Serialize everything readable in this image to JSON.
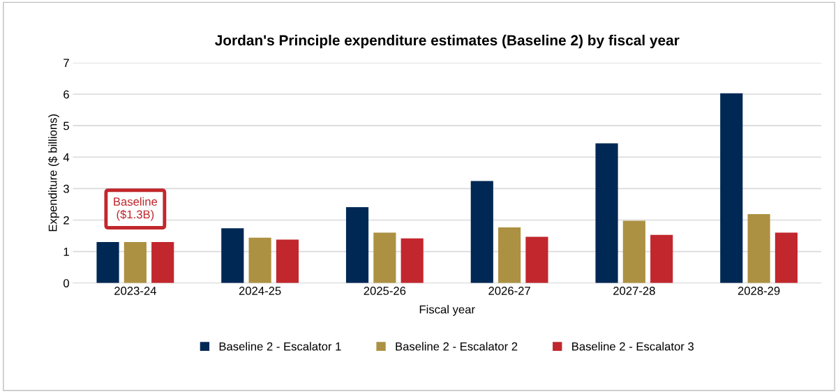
{
  "chart_data": {
    "type": "bar",
    "title": "Jordan's Principle expenditure estimates (Baseline 2) by fiscal year",
    "xlabel": "Fiscal year",
    "ylabel": "Expenditure ($ billions)",
    "categories": [
      "2023-24",
      "2024-25",
      "2025-26",
      "2026-27",
      "2027-28",
      "2028-29"
    ],
    "series": [
      {
        "name": "Baseline 2 - Escalator 1",
        "color": "#002855",
        "values": [
          1.3,
          1.74,
          2.41,
          3.24,
          4.44,
          6.03
        ]
      },
      {
        "name": "Baseline 2 - Escalator 2",
        "color": "#ad9142",
        "values": [
          1.3,
          1.44,
          1.6,
          1.77,
          1.98,
          2.19
        ]
      },
      {
        "name": "Baseline 2 - Escalator 3",
        "color": "#c1272d",
        "values": [
          1.3,
          1.38,
          1.42,
          1.47,
          1.53,
          1.6
        ]
      }
    ],
    "ylim": [
      0,
      7
    ],
    "yticks": [
      0,
      1,
      2,
      3,
      4,
      5,
      6,
      7
    ],
    "grid": "y",
    "legend": "bottom",
    "annotations": [
      {
        "text": "Baseline\n($1.3B)",
        "x": "2023-24",
        "y": 1.3
      }
    ]
  }
}
